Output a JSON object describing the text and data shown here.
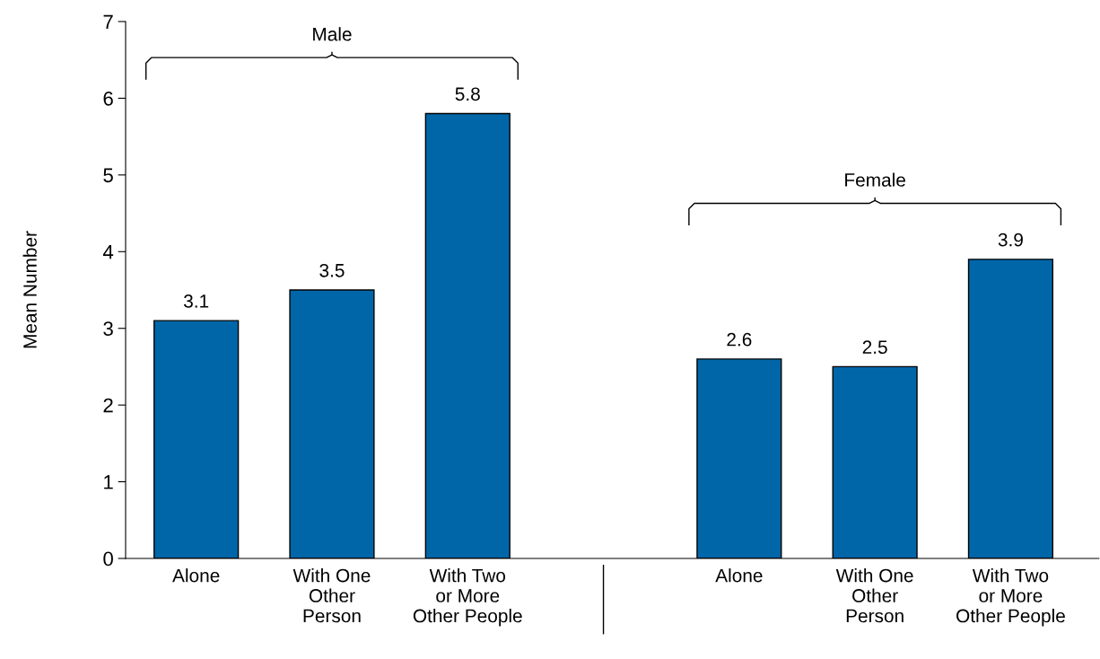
{
  "chart_data": {
    "type": "bar",
    "ylabel": "Mean Number",
    "categories": [
      "Alone",
      "With One\nOther\nPerson",
      "With Two\nor More\nOther People",
      null,
      "Alone",
      "With One\nOther\nPerson",
      "With Two\nor More\nOther People"
    ],
    "values": [
      3.1,
      3.5,
      5.8,
      null,
      2.6,
      2.5,
      3.9
    ],
    "color": "#0066a8",
    "ylim": [
      0,
      7
    ],
    "yticks": [
      0,
      1,
      2,
      3,
      4,
      5,
      6,
      7
    ],
    "data_labels": true,
    "grid": false,
    "annotations": [
      "Male",
      "Female"
    ]
  }
}
